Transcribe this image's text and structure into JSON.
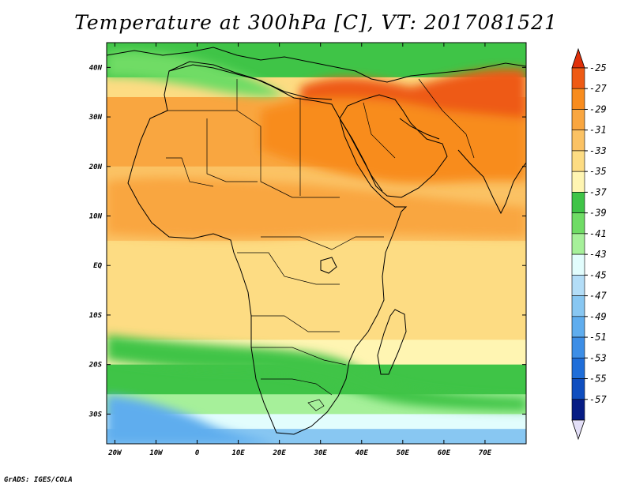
{
  "title": "Temperature at 300hPa [C], VT: 2017081521",
  "credit": "GrADS: IGES/COLA",
  "map": {
    "lon_range": [
      -22,
      80
    ],
    "lat_range": [
      -36,
      45
    ],
    "lon_ticks": [
      {
        "value": -20,
        "label": "20W"
      },
      {
        "value": -10,
        "label": "10W"
      },
      {
        "value": 0,
        "label": "0"
      },
      {
        "value": 10,
        "label": "10E"
      },
      {
        "value": 20,
        "label": "20E"
      },
      {
        "value": 30,
        "label": "30E"
      },
      {
        "value": 40,
        "label": "40E"
      },
      {
        "value": 50,
        "label": "50E"
      },
      {
        "value": 60,
        "label": "60E"
      },
      {
        "value": 70,
        "label": "70E"
      }
    ],
    "lat_ticks": [
      {
        "value": 40,
        "label": "40N"
      },
      {
        "value": 30,
        "label": "30N"
      },
      {
        "value": 20,
        "label": "20N"
      },
      {
        "value": 10,
        "label": "10N"
      },
      {
        "value": 0,
        "label": "EQ"
      },
      {
        "value": -10,
        "label": "10S"
      },
      {
        "value": -20,
        "label": "20S"
      },
      {
        "value": -30,
        "label": "30S"
      }
    ]
  },
  "colorbar": {
    "labels": [
      "-25",
      "-27",
      "-29",
      "-31",
      "-33",
      "-35",
      "-37",
      "-39",
      "-41",
      "-43",
      "-45",
      "-47",
      "-49",
      "-51",
      "-53",
      "-55",
      "-57"
    ],
    "top_arrow_color": "#e0300a",
    "bottom_arrow_color": "#e3dff7",
    "bins": [
      "#ee5a14",
      "#f88c1e",
      "#f9a640",
      "#fbc264",
      "#fddc83",
      "#fff5b2",
      "#3fc447",
      "#6fdc65",
      "#a6f09a",
      "#e2fdfd",
      "#b3ddf7",
      "#88c7f2",
      "#5fadee",
      "#3d8ee6",
      "#1f6ed9",
      "#0f4ebf",
      "#061c84"
    ]
  },
  "temperature_bands_by_lat": [
    {
      "lat_from": 45,
      "lat_to": 38,
      "color": "#3fc447"
    },
    {
      "lat_from": 38,
      "lat_to": 34,
      "color": "#fddc83"
    },
    {
      "lat_from": 34,
      "lat_to": 20,
      "color": "#f9a640"
    },
    {
      "lat_from": 20,
      "lat_to": 5,
      "color": "#fbc264"
    },
    {
      "lat_from": 5,
      "lat_to": -15,
      "color": "#fddc83"
    },
    {
      "lat_from": -15,
      "lat_to": -20,
      "color": "#fff5b2"
    },
    {
      "lat_from": -20,
      "lat_to": -26,
      "color": "#3fc447"
    },
    {
      "lat_from": -26,
      "lat_to": -30,
      "color": "#a6f09a"
    },
    {
      "lat_from": -30,
      "lat_to": -33,
      "color": "#e2fdfd"
    },
    {
      "lat_from": -33,
      "lat_to": -36,
      "color": "#88c7f2"
    }
  ]
}
